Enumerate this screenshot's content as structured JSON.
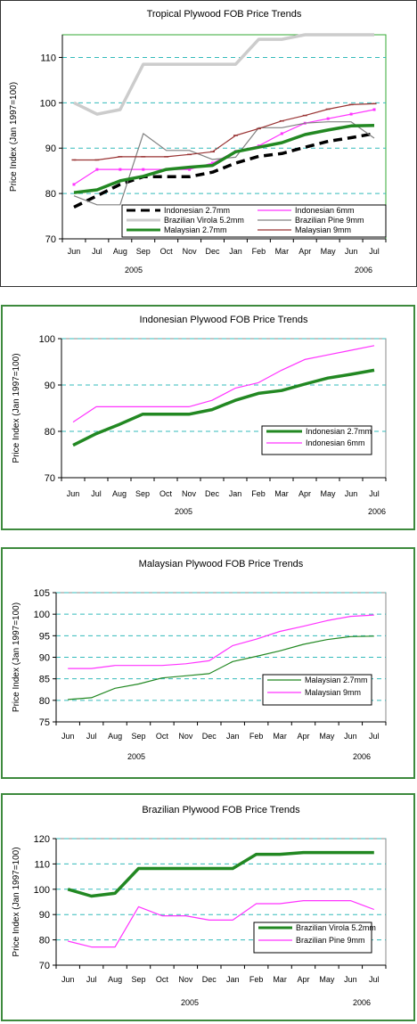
{
  "chart_data": [
    {
      "type": "line",
      "title": "Tropical Plywood FOB Price Trends",
      "ylabel": "Price Index (Jan 1997=100)",
      "xlabel": "",
      "categories": [
        "Jun",
        "Jul",
        "Aug",
        "Sep",
        "Oct",
        "Nov",
        "Dec",
        "Jan",
        "Feb",
        "Mar",
        "Apr",
        "May",
        "Jun",
        "Jul"
      ],
      "year_labels": [
        "2005",
        "2006"
      ],
      "ylim": [
        70,
        115
      ],
      "yticks": [
        70,
        80,
        90,
        100,
        110
      ],
      "grid": true,
      "legend_position": "bottom-right",
      "series": [
        {
          "name": "Indonesian 2.7mm",
          "color": "#000000",
          "style": "dashed",
          "values": [
            77,
            79.5,
            82,
            83.7,
            83.7,
            83.7,
            84.7,
            86.7,
            88.2,
            88.8,
            90.2,
            91.5,
            92.3,
            93.2
          ]
        },
        {
          "name": "Indonesian 6mm",
          "color": "#ff33ff",
          "style": "thin-square",
          "values": [
            82,
            85.3,
            85.3,
            85.3,
            85.3,
            85.3,
            86.7,
            89.3,
            90.5,
            93.2,
            95.5,
            96.5,
            97.5,
            98.5
          ]
        },
        {
          "name": "Brazilian Virola 5.2mm",
          "color": "#cccccc",
          "style": "thick",
          "values": [
            100,
            97.5,
            98.5,
            108.5,
            108.5,
            108.5,
            108.5,
            108.5,
            114,
            114,
            115,
            115,
            115,
            115
          ]
        },
        {
          "name": "Brazilian Pine 9mm",
          "color": "#808080",
          "style": "thin",
          "values": [
            79.5,
            77.5,
            77.5,
            93.2,
            89.5,
            89.5,
            87.5,
            88,
            94.5,
            94.5,
            95.5,
            95.8,
            95.8,
            92.2
          ]
        },
        {
          "name": "Malaysian 2.7mm",
          "color": "#228822",
          "style": "thick",
          "values": [
            80.2,
            80.8,
            82.8,
            83.8,
            85.3,
            85.8,
            86.2,
            89.2,
            90.2,
            91.2,
            93,
            94,
            94.9,
            95
          ]
        },
        {
          "name": "Malaysian 9mm",
          "color": "#993333",
          "style": "thin-dash",
          "values": [
            87.4,
            87.4,
            88.1,
            88.1,
            88.1,
            88.6,
            89.2,
            92.8,
            94.3,
            96,
            97.2,
            98.6,
            99.6,
            99.8
          ]
        }
      ]
    },
    {
      "type": "line",
      "title": "Indonesian Plywood FOB Price Trends",
      "ylabel": "Price Index (Jan 1997=100)",
      "xlabel": "",
      "categories": [
        "Jun",
        "Jul",
        "Aug",
        "Sep",
        "Oct",
        "Nov",
        "Dec",
        "Jan",
        "Feb",
        "Mar",
        "Apr",
        "May",
        "Jun",
        "Jul"
      ],
      "year_labels": [
        "2005",
        "2006"
      ],
      "ylim": [
        70,
        100
      ],
      "yticks": [
        70,
        80,
        90,
        100
      ],
      "grid": true,
      "legend_position": "right",
      "series": [
        {
          "name": "Indonesian 2.7mm",
          "color": "#228822",
          "style": "thick",
          "values": [
            77,
            79.5,
            81.5,
            83.7,
            83.7,
            83.7,
            84.7,
            86.7,
            88.2,
            88.8,
            90.2,
            91.5,
            92.3,
            93.2
          ]
        },
        {
          "name": "Indonesian 6mm",
          "color": "#ff33ff",
          "style": "thin",
          "values": [
            82,
            85.3,
            85.3,
            85.3,
            85.3,
            85.3,
            86.7,
            89.3,
            90.5,
            93.2,
            95.5,
            96.5,
            97.5,
            98.5
          ]
        }
      ]
    },
    {
      "type": "line",
      "title": "Malaysian Plywood FOB Price Trends",
      "ylabel": "Price Index (Jan 1997=100)",
      "xlabel": "",
      "categories": [
        "Jun",
        "Jul",
        "Aug",
        "Sep",
        "Oct",
        "Nov",
        "Dec",
        "Jan",
        "Feb",
        "Mar",
        "Apr",
        "May",
        "Jun",
        "Jul"
      ],
      "year_labels": [
        "2005",
        "2006"
      ],
      "ylim": [
        75,
        105
      ],
      "yticks": [
        75,
        80,
        85,
        90,
        95,
        100,
        105
      ],
      "grid": true,
      "legend_position": "right",
      "series": [
        {
          "name": "Malaysian 2.7mm",
          "color": "#228822",
          "style": "thin",
          "values": [
            80.2,
            80.6,
            82.8,
            83.8,
            85.2,
            85.7,
            86.2,
            89,
            90.2,
            91.5,
            93,
            94.1,
            94.8,
            94.9
          ]
        },
        {
          "name": "Malaysian 9mm",
          "color": "#ff33ff",
          "style": "thin",
          "values": [
            87.4,
            87.4,
            88.1,
            88.1,
            88.1,
            88.5,
            89.2,
            92.7,
            94.2,
            96,
            97.2,
            98.5,
            99.5,
            99.8
          ]
        }
      ]
    },
    {
      "type": "line",
      "title": "Brazilian Plywood FOB Price Trends",
      "ylabel": "Price Index (Jan 1997=100)",
      "xlabel": "",
      "categories": [
        "Jun",
        "Jul",
        "Aug",
        "Sep",
        "Oct",
        "Nov",
        "Dec",
        "Jan",
        "Feb",
        "Mar",
        "Apr",
        "May",
        "Jun",
        "Jul"
      ],
      "year_labels": [
        "2005",
        "2006"
      ],
      "ylim": [
        70,
        120
      ],
      "yticks": [
        70,
        80,
        90,
        100,
        110,
        120
      ],
      "grid": true,
      "legend_position": "right",
      "series": [
        {
          "name": "Brazilian Virola 5.2mm",
          "color": "#228822",
          "style": "thick",
          "values": [
            100,
            97.3,
            98.4,
            108.2,
            108.2,
            108.2,
            108.2,
            108.2,
            113.8,
            113.8,
            114.5,
            114.5,
            114.5,
            114.5
          ]
        },
        {
          "name": "Brazilian Pine 9mm",
          "color": "#ff33ff",
          "style": "thin",
          "values": [
            79.5,
            77.2,
            77.2,
            93.1,
            89.5,
            89.5,
            87.8,
            87.8,
            94.3,
            94.3,
            95.5,
            95.5,
            95.5,
            92
          ]
        }
      ]
    }
  ]
}
